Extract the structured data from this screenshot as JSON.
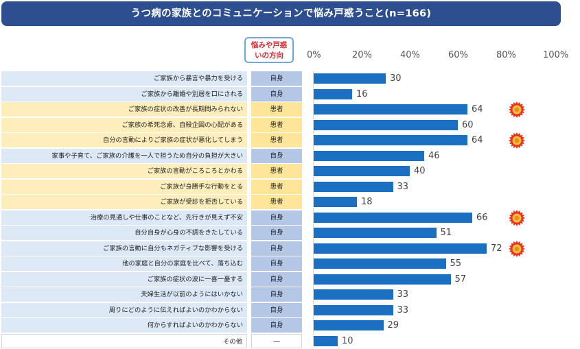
{
  "title": "うつ病の家族とのコミュニケーションで悩み戸惑うこと(n=166)",
  "column_header": [
    "悩みや戸惑",
    "いの方向"
  ],
  "colors": {
    "bar": "#1a6fc0",
    "self_bg": "#dce8f5",
    "patient_bg": "#fdeebc",
    "burst": "#e8331f"
  },
  "chart_data": {
    "type": "bar",
    "orientation": "horizontal",
    "title": "うつ病の家族とのコミュニケーションで悩み戸惑うこと(n=166)",
    "xlim": [
      0,
      100
    ],
    "x_ticks": [
      "0%",
      "20%",
      "40%",
      "60%",
      "80%",
      "100%"
    ],
    "categories": [
      "ご家族から暴言や暴力を受ける",
      "ご家族から離婚や別居を口にされる",
      "ご家族の症状の改善が長期間みられない",
      "ご家族の希死念慮、自殺企図の心配がある",
      "自分の言動によりご家族の症状が悪化してしまう",
      "家事や子育て、ご家族の介護を一人で担うため自分の負担が大きい",
      "ご家族の言動がころころとかわる",
      "ご家族が身勝手な行動をとる",
      "ご家族が受診を拒否している",
      "治療の見通しや仕事のことなど、先行きが見えず不安",
      "自分自身が心身の不調をきたしている",
      "ご家族の言動に自分もネガティブな影響を受ける",
      "他の家庭と自分の家庭を比べて、落ち込む",
      "ご家族の症状の波に一喜一憂する",
      "夫婦生活が以前のようにはいかない",
      "周りにどのように伝えればよいのかわからない",
      "何からすればよいのかわからない",
      "その他"
    ],
    "direction": [
      "自身",
      "自身",
      "患者",
      "患者",
      "患者",
      "自身",
      "患者",
      "患者",
      "患者",
      "自身",
      "自身",
      "自身",
      "自身",
      "自身",
      "自身",
      "自身",
      "自身",
      "―"
    ],
    "direction_type": [
      "self",
      "self",
      "patient",
      "patient",
      "patient",
      "self",
      "patient",
      "patient",
      "patient",
      "self",
      "self",
      "self",
      "self",
      "self",
      "self",
      "self",
      "self",
      "other"
    ],
    "values": [
      30,
      16,
      64,
      60,
      64,
      46,
      40,
      33,
      18,
      66,
      51,
      72,
      55,
      57,
      33,
      33,
      29,
      10
    ],
    "highlighted": [
      false,
      false,
      true,
      false,
      true,
      false,
      false,
      false,
      false,
      true,
      false,
      true,
      false,
      false,
      false,
      false,
      false,
      false
    ]
  }
}
